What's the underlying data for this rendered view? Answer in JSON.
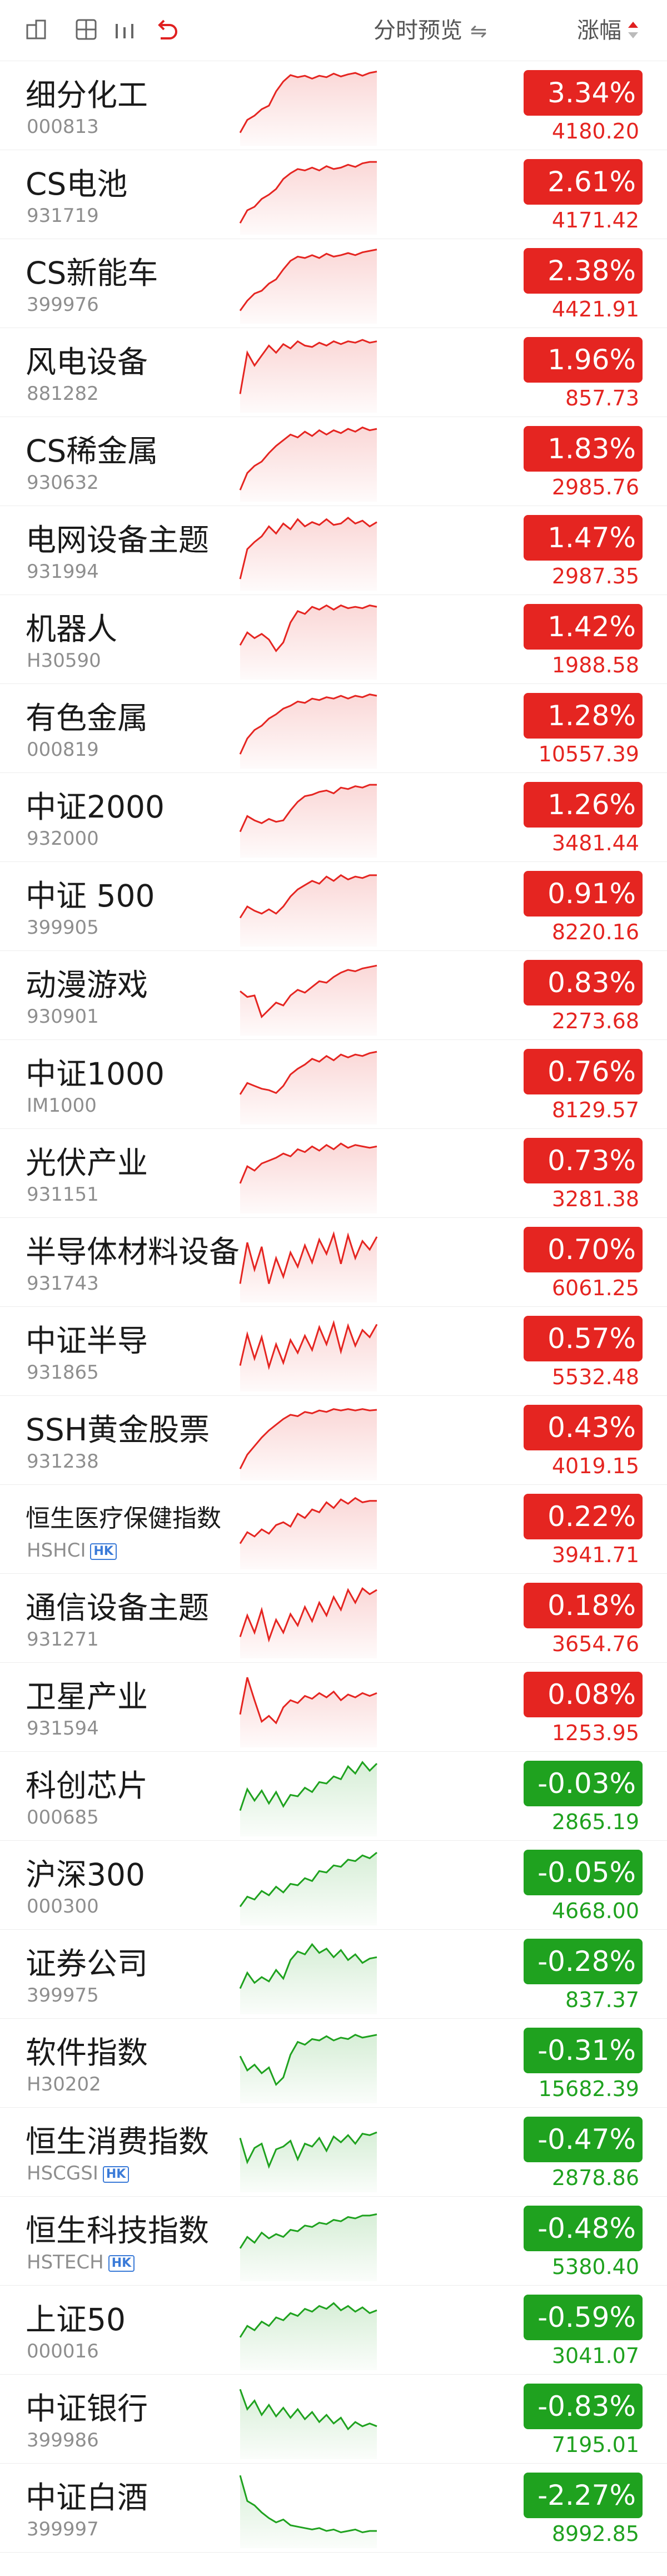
{
  "header": {
    "preview_label": "分时预览",
    "swap_icon": "⇋",
    "change_label": "涨幅"
  },
  "colors": {
    "up": "#e52521",
    "down": "#1fa21f"
  },
  "rows": [
    {
      "name": "细分化工",
      "code": "000813",
      "change": "3.34%",
      "price": "4180.20",
      "dir": "up",
      "spark": [
        12,
        30,
        36,
        45,
        50,
        70,
        84,
        93,
        90,
        92,
        88,
        92,
        90,
        95,
        91,
        94,
        96,
        92,
        96,
        98
      ]
    },
    {
      "name": "CS电池",
      "code": "931719",
      "change": "2.61%",
      "price": "4171.42",
      "dir": "up",
      "spark": [
        10,
        28,
        33,
        44,
        50,
        58,
        72,
        80,
        86,
        84,
        88,
        84,
        90,
        86,
        88,
        92,
        89,
        94,
        96,
        96
      ]
    },
    {
      "name": "CS新能车",
      "code": "399976",
      "change": "2.38%",
      "price": "4421.91",
      "dir": "up",
      "spark": [
        12,
        26,
        36,
        40,
        50,
        56,
        70,
        82,
        88,
        86,
        90,
        86,
        92,
        88,
        90,
        93,
        90,
        94,
        96,
        98
      ]
    },
    {
      "name": "风电设备",
      "code": "881282",
      "change": "1.96%",
      "price": "857.73",
      "dir": "up",
      "spark": [
        20,
        78,
        60,
        74,
        88,
        78,
        90,
        84,
        94,
        88,
        86,
        92,
        88,
        94,
        90,
        94,
        92,
        96,
        92,
        94
      ]
    },
    {
      "name": "CS稀金属",
      "code": "930632",
      "change": "1.83%",
      "price": "2985.76",
      "dir": "up",
      "spark": [
        10,
        34,
        44,
        50,
        62,
        72,
        80,
        88,
        84,
        92,
        86,
        94,
        88,
        94,
        90,
        96,
        92,
        98,
        94,
        96
      ]
    },
    {
      "name": "电网设备主题",
      "code": "931994",
      "change": "1.47%",
      "price": "2987.35",
      "dir": "up",
      "spark": [
        10,
        52,
        62,
        70,
        84,
        74,
        88,
        80,
        94,
        84,
        90,
        86,
        94,
        86,
        88,
        96,
        88,
        92,
        84,
        90
      ]
    },
    {
      "name": "机器人",
      "code": "H30590",
      "change": "1.42%",
      "price": "1988.58",
      "dir": "up",
      "spark": [
        42,
        60,
        52,
        58,
        50,
        34,
        46,
        74,
        90,
        86,
        96,
        92,
        98,
        92,
        98,
        94,
        96,
        94,
        98,
        96
      ]
    },
    {
      "name": "有色金属",
      "code": "000819",
      "change": "1.28%",
      "price": "10557.39",
      "dir": "up",
      "spark": [
        14,
        36,
        48,
        54,
        64,
        70,
        78,
        82,
        88,
        86,
        92,
        90,
        94,
        92,
        96,
        92,
        96,
        94,
        98,
        96
      ]
    },
    {
      "name": "中证2000",
      "code": "932000",
      "change": "1.26%",
      "price": "3481.44",
      "dir": "up",
      "spark": [
        30,
        52,
        46,
        42,
        48,
        44,
        46,
        60,
        72,
        80,
        82,
        86,
        88,
        84,
        92,
        90,
        94,
        92,
        96,
        96
      ]
    },
    {
      "name": "中证 500",
      "code": "399905",
      "change": "0.91%",
      "price": "8220.16",
      "dir": "up",
      "spark": [
        34,
        50,
        44,
        40,
        46,
        40,
        50,
        64,
        74,
        80,
        86,
        82,
        92,
        86,
        94,
        88,
        92,
        90,
        94,
        94
      ]
    },
    {
      "name": "动漫游戏",
      "code": "930901",
      "change": "0.83%",
      "price": "2273.68",
      "dir": "up",
      "spark": [
        56,
        48,
        50,
        20,
        30,
        40,
        36,
        50,
        58,
        54,
        62,
        70,
        68,
        76,
        82,
        86,
        84,
        88,
        90,
        92
      ]
    },
    {
      "name": "中证1000",
      "code": "IM1000",
      "change": "0.76%",
      "price": "8129.57",
      "dir": "up",
      "spark": [
        36,
        52,
        48,
        44,
        42,
        38,
        48,
        64,
        72,
        78,
        86,
        82,
        90,
        84,
        92,
        88,
        92,
        90,
        94,
        96
      ]
    },
    {
      "name": "光伏产业",
      "code": "931151",
      "change": "0.73%",
      "price": "3281.38",
      "dir": "up",
      "spark": [
        36,
        60,
        54,
        64,
        68,
        72,
        78,
        74,
        84,
        80,
        88,
        82,
        90,
        84,
        92,
        86,
        90,
        88,
        86,
        88
      ]
    },
    {
      "name": "半导体材料设备",
      "code": "931743",
      "change": "0.70%",
      "price": "6061.25",
      "dir": "up",
      "spark": [
        20,
        78,
        40,
        72,
        20,
        56,
        30,
        64,
        44,
        74,
        50,
        82,
        62,
        90,
        48,
        88,
        56,
        80,
        68,
        86
      ]
    },
    {
      "name": "中证半导",
      "code": "931865",
      "change": "0.57%",
      "price": "5532.48",
      "dir": "up",
      "spark": [
        30,
        74,
        40,
        70,
        28,
        60,
        34,
        66,
        48,
        72,
        52,
        84,
        60,
        90,
        50,
        86,
        58,
        80,
        70,
        88
      ]
    },
    {
      "name": "SSH黄金股票",
      "code": "931238",
      "change": "0.43%",
      "price": "4019.15",
      "dir": "up",
      "spark": [
        10,
        30,
        42,
        54,
        64,
        72,
        80,
        86,
        84,
        90,
        88,
        92,
        90,
        94,
        92,
        94,
        92,
        94,
        92,
        93
      ]
    },
    {
      "name": "恒生医疗保健指数",
      "code": "HSHCI",
      "hk": true,
      "small": true,
      "change": "0.22%",
      "price": "3941.71",
      "dir": "up",
      "spark": [
        30,
        46,
        40,
        50,
        44,
        56,
        60,
        54,
        72,
        66,
        78,
        74,
        88,
        80,
        92,
        86,
        94,
        88,
        90,
        90
      ]
    },
    {
      "name": "通信设备主题",
      "code": "931271",
      "change": "0.18%",
      "price": "3654.76",
      "dir": "up",
      "spark": [
        24,
        54,
        30,
        62,
        20,
        48,
        30,
        56,
        40,
        66,
        46,
        72,
        54,
        80,
        62,
        90,
        72,
        92,
        84,
        90
      ]
    },
    {
      "name": "卫星产业",
      "code": "931594",
      "change": "0.08%",
      "price": "1253.95",
      "dir": "up",
      "spark": [
        40,
        92,
        60,
        30,
        38,
        28,
        50,
        60,
        56,
        66,
        62,
        70,
        64,
        72,
        60,
        68,
        64,
        70,
        66,
        70
      ]
    },
    {
      "name": "科创芯片",
      "code": "000685",
      "change": "-0.03%",
      "price": "2865.19",
      "dir": "down",
      "spark": [
        30,
        60,
        44,
        58,
        40,
        56,
        36,
        52,
        50,
        62,
        56,
        70,
        68,
        78,
        74,
        92,
        82,
        98,
        86,
        96
      ]
    },
    {
      "name": "沪深300",
      "code": "000300",
      "change": "-0.05%",
      "price": "4668.00",
      "dir": "down",
      "spark": [
        20,
        34,
        30,
        42,
        36,
        48,
        40,
        52,
        50,
        60,
        56,
        70,
        68,
        78,
        76,
        86,
        84,
        92,
        88,
        96
      ]
    },
    {
      "name": "证券公司",
      "code": "399975",
      "change": "-0.28%",
      "price": "837.37",
      "dir": "down",
      "spark": [
        30,
        52,
        38,
        46,
        40,
        56,
        44,
        70,
        82,
        78,
        92,
        80,
        86,
        74,
        84,
        70,
        78,
        66,
        72,
        74
      ]
    },
    {
      "name": "软件指数",
      "code": "H30202",
      "change": "-0.31%",
      "price": "15682.39",
      "dir": "down",
      "spark": [
        60,
        40,
        48,
        36,
        44,
        20,
        30,
        62,
        80,
        76,
        84,
        82,
        88,
        82,
        86,
        84,
        90,
        86,
        88,
        90
      ]
    },
    {
      "name": "恒生消费指数",
      "code": "HSCGSI",
      "hk": true,
      "change": "-0.47%",
      "price": "2878.86",
      "dir": "down",
      "spark": [
        70,
        36,
        56,
        62,
        30,
        54,
        58,
        66,
        40,
        62,
        58,
        70,
        52,
        72,
        64,
        74,
        62,
        76,
        74,
        78
      ]
    },
    {
      "name": "恒生科技指数",
      "code": "HSTECH",
      "hk": true,
      "change": "-0.48%",
      "price": "5380.40",
      "dir": "down",
      "spark": [
        40,
        56,
        48,
        62,
        54,
        60,
        56,
        66,
        64,
        72,
        70,
        76,
        74,
        80,
        78,
        84,
        82,
        86,
        86,
        88
      ]
    },
    {
      "name": "上证50",
      "code": "000016",
      "change": "-0.59%",
      "price": "3041.07",
      "dir": "down",
      "spark": [
        40,
        56,
        50,
        62,
        56,
        68,
        64,
        74,
        70,
        80,
        76,
        84,
        80,
        88,
        78,
        84,
        76,
        82,
        74,
        78
      ]
    },
    {
      "name": "中证银行",
      "code": "399986",
      "change": "-0.83%",
      "price": "7195.01",
      "dir": "down",
      "spark": [
        92,
        64,
        76,
        56,
        70,
        54,
        66,
        52,
        64,
        50,
        60,
        46,
        56,
        44,
        52,
        36,
        46,
        40,
        44,
        40
      ]
    },
    {
      "name": "中证白酒",
      "code": "399997",
      "change": "-2.27%",
      "price": "8992.85",
      "dir": "down",
      "spark": [
        96,
        60,
        54,
        44,
        36,
        30,
        34,
        26,
        24,
        22,
        20,
        22,
        18,
        20,
        16,
        18,
        20,
        16,
        18,
        18
      ]
    }
  ]
}
